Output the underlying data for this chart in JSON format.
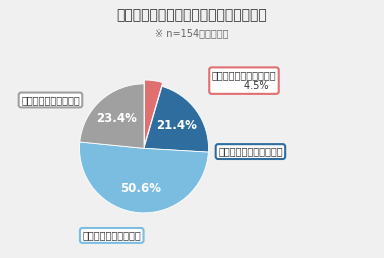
{
  "title": "【図】規制強化による影響への対応状況",
  "subtitle": "※ n=154／単一回答",
  "slices": [
    {
      "label": "対応が全て完了している",
      "pct": 4.5,
      "color": "#e07070",
      "pct_label": "4.5%",
      "inside_pct": false
    },
    {
      "label": "対応の多くが残っている",
      "pct": 21.4,
      "color": "#2e6d9e",
      "pct_label": "21.4%",
      "inside_pct": true
    },
    {
      "label": "対応が一部残っている",
      "pct": 50.6,
      "color": "#7bbde0",
      "pct_label": "50.6%",
      "inside_pct": true
    },
    {
      "label": "全く対応できていない",
      "pct": 23.4,
      "color": "#a0a0a0",
      "pct_label": "23.4%",
      "inside_pct": true
    }
  ],
  "start_angle": 90,
  "background": "#f0f0f0",
  "label_box_colors": [
    "#e07070",
    "#2e6d9e",
    "#7bbde0",
    "#a0a0a0"
  ],
  "title_fontsize": 10,
  "subtitle_fontsize": 7,
  "pct_fontsize_inside": 8.5,
  "label_fontsize": 7
}
